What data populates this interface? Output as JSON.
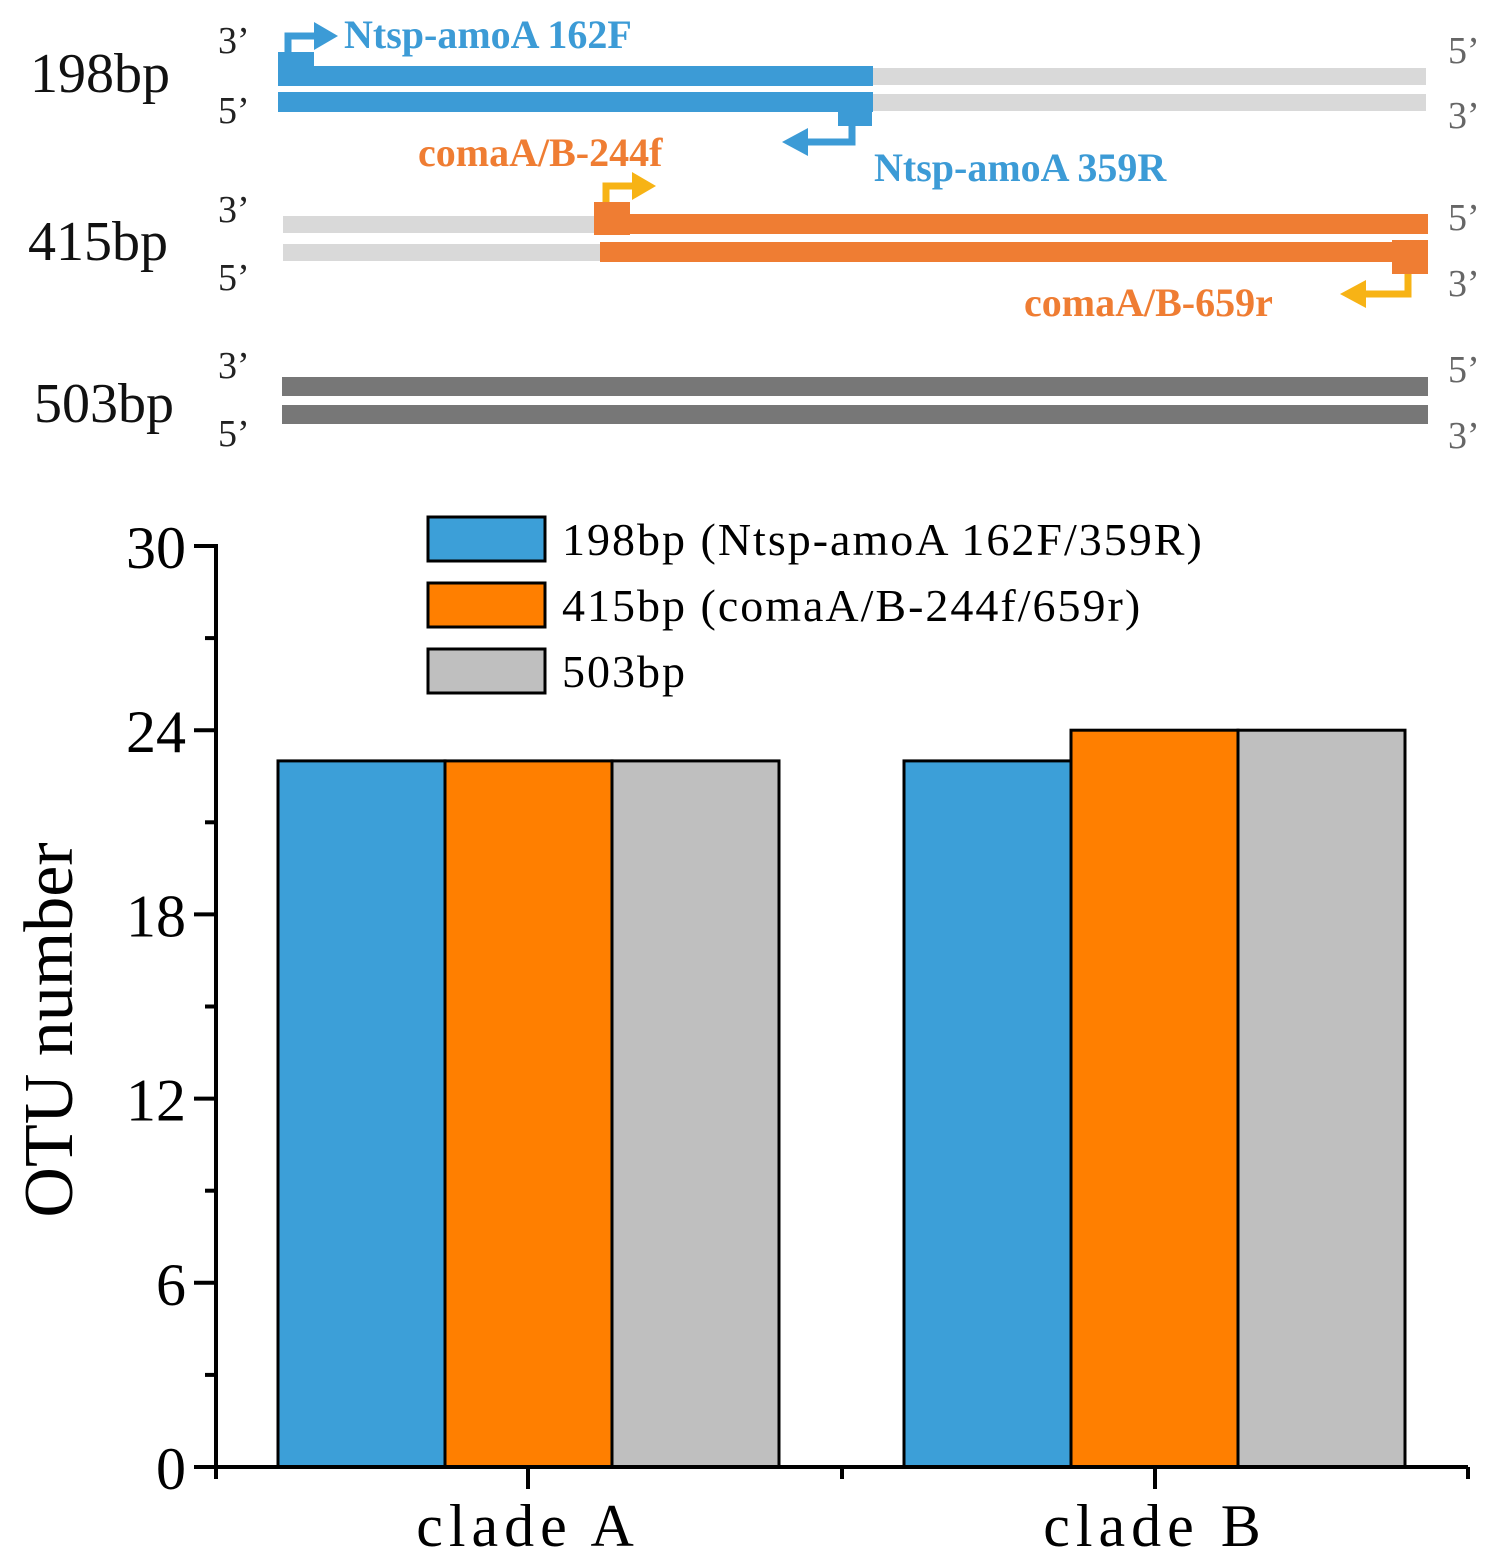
{
  "schematic": {
    "amplicons": [
      {
        "length_label": "198bp",
        "strand_top_left": "3’",
        "strand_bottom_left": "5’",
        "strand_top_right": "5’",
        "strand_bottom_right": "3’",
        "forward_primer": "Ntsp-amoA 162F",
        "reverse_primer": "Ntsp-amoA 359R",
        "color": "#3c9bd6",
        "arrow_color": "#3c9bd6"
      },
      {
        "length_label": "415bp",
        "strand_top_left": "3’",
        "strand_bottom_left": "5’",
        "strand_top_right": "5’",
        "strand_bottom_right": "3’",
        "forward_primer": "comaA/B-244f",
        "reverse_primer": "comaA/B-659r",
        "color": "#ef7d33",
        "arrow_color": "#f7b315"
      },
      {
        "length_label": "503bp",
        "strand_top_left": "3’",
        "strand_bottom_left": "5’",
        "strand_top_right": "5’",
        "strand_bottom_right": "3’",
        "color": "#777777"
      }
    ],
    "template_color": "#d9d9d9"
  },
  "chart_data": {
    "type": "bar",
    "categories": [
      "clade A",
      "clade B"
    ],
    "series": [
      {
        "name": "198bp (Ntsp-amoA 162F/359R)",
        "values": [
          23,
          23
        ],
        "color": "#3c9fd8"
      },
      {
        "name": "415bp (comaA/B-244f/659r)",
        "values": [
          23,
          24
        ],
        "color": "#ff7f00"
      },
      {
        "name": "503bp",
        "values": [
          23,
          24
        ],
        "color": "#bfbfbf"
      }
    ],
    "ylabel": "OTU number",
    "xlabel": "",
    "ylim": [
      0,
      30
    ],
    "yticks": [
      "0",
      "6",
      "12",
      "18",
      "24",
      "30"
    ],
    "legend_position": "top"
  }
}
